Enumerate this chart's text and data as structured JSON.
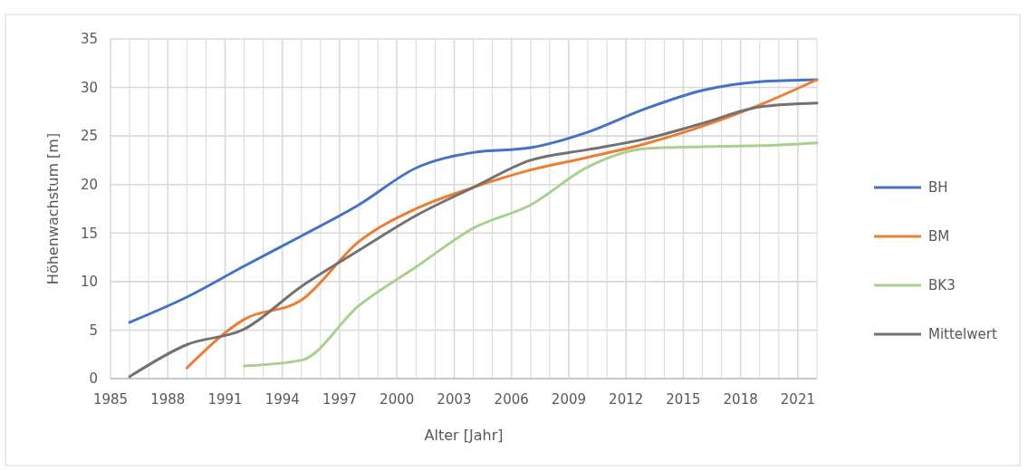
{
  "chart_data": {
    "type": "line",
    "xlabel": "Alter [Jahr]",
    "ylabel": "Höhenwachstum [m]",
    "x": [
      1986,
      1989,
      1992,
      1995,
      1998,
      2001,
      2004,
      2007,
      2010,
      2013,
      2016,
      2019,
      2022
    ],
    "series": [
      {
        "name": "BH",
        "color": "#4472c4",
        "values": [
          5.8,
          8.4,
          11.6,
          14.7,
          17.9,
          21.7,
          23.3,
          23.8,
          25.4,
          27.8,
          29.7,
          30.6,
          30.8
        ]
      },
      {
        "name": "BM",
        "color": "#ed7d31",
        "values": [
          null,
          1.1,
          6.1,
          8.1,
          14.1,
          17.5,
          19.7,
          21.5,
          22.8,
          24.2,
          26.0,
          28.2,
          30.8
        ]
      },
      {
        "name": "BK3",
        "color": "#a9d18e",
        "values": [
          null,
          null,
          1.3,
          1.9,
          7.5,
          11.5,
          15.5,
          17.9,
          21.8,
          23.7,
          23.9,
          24.0,
          24.3
        ]
      },
      {
        "name": "Mittelwert",
        "color": "#767171",
        "values": [
          0.2,
          3.5,
          5.1,
          9.5,
          13.2,
          16.8,
          19.7,
          22.5,
          23.6,
          24.7,
          26.3,
          28.0,
          28.4
        ]
      }
    ],
    "xlim": [
      1985,
      2022
    ],
    "xticks": [
      1985,
      {
        "value": 1986,
        "label": null
      },
      {
        "value": 1987,
        "label": null
      },
      1988,
      {
        "value": 1989,
        "label": null
      },
      {
        "value": 1990,
        "label": null
      },
      1991,
      {
        "value": 1992,
        "label": null
      },
      {
        "value": 1993,
        "label": null
      },
      1994,
      {
        "value": 1995,
        "label": null
      },
      {
        "value": 1996,
        "label": null
      },
      1997,
      {
        "value": 1998,
        "label": null
      },
      {
        "value": 1999,
        "label": null
      },
      2000,
      {
        "value": 2001,
        "label": null
      },
      {
        "value": 2002,
        "label": null
      },
      2003,
      {
        "value": 2004,
        "label": null
      },
      {
        "value": 2005,
        "label": null
      },
      2006,
      {
        "value": 2007,
        "label": null
      },
      {
        "value": 2008,
        "label": null
      },
      2009,
      {
        "value": 2010,
        "label": null
      },
      {
        "value": 2011,
        "label": null
      },
      2012,
      {
        "value": 2013,
        "label": null
      },
      {
        "value": 2014,
        "label": null
      },
      2015,
      {
        "value": 2016,
        "label": null
      },
      {
        "value": 2017,
        "label": null
      },
      2018,
      {
        "value": 2019,
        "label": null
      },
      {
        "value": 2020,
        "label": null
      },
      2021,
      {
        "value": 2022,
        "label": null
      }
    ],
    "ylim": [
      0,
      35
    ],
    "yticks": [
      0,
      5,
      10,
      15,
      20,
      25,
      30,
      35
    ],
    "grid": true,
    "legend": "right",
    "marker": "none",
    "line_style": "solid"
  }
}
